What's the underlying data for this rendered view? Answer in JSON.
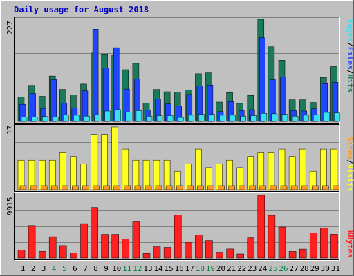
{
  "title": "Daily usage for August 2018",
  "colors": {
    "background": "#c0c0c0",
    "grid": "#808080",
    "title": "#0000c0",
    "axis_text": "#000000",
    "weekend_text": "#008040",
    "hits": "#1a7a5c",
    "files": "#1f45ff",
    "pages": "#38e0f0",
    "visits": "#ffff20",
    "sites": "#ff9a20",
    "kbytes": "#ff2020"
  },
  "chart_data": [
    {
      "type": "bar",
      "categories": [
        "1",
        "2",
        "3",
        "4",
        "5",
        "6",
        "7",
        "8",
        "9",
        "10",
        "11",
        "12",
        "13",
        "14",
        "15",
        "16",
        "17",
        "18",
        "19",
        "20",
        "21",
        "22",
        "23",
        "24",
        "25",
        "26",
        "27",
        "28",
        "29",
        "30",
        "31"
      ],
      "weekend_days": [
        "4",
        "5",
        "11",
        "12",
        "18",
        "19",
        "25",
        "26"
      ],
      "ymax_label": "227",
      "ylim": [
        0,
        227
      ],
      "legend": [
        "Pages",
        "Files",
        "Hits"
      ],
      "series": [
        {
          "name": "Hits",
          "values": [
            54,
            80,
            56,
            101,
            71,
            59,
            83,
            152,
            150,
            147,
            115,
            129,
            41,
            71,
            66,
            65,
            70,
            106,
            108,
            43,
            64,
            40,
            58,
            227,
            166,
            136,
            48,
            48,
            42,
            98,
            122
          ]
        },
        {
          "name": "Files",
          "values": [
            38,
            62,
            29,
            93,
            41,
            30,
            68,
            205,
            119,
            164,
            72,
            94,
            25,
            50,
            39,
            34,
            60,
            79,
            81,
            22,
            44,
            24,
            26,
            186,
            93,
            99,
            24,
            23,
            28,
            84,
            87
          ]
        },
        {
          "name": "Pages",
          "values": [
            10,
            10,
            11,
            10,
            15,
            14,
            12,
            15,
            23,
            26,
            21,
            24,
            12,
            13,
            13,
            9,
            14,
            16,
            16,
            14,
            14,
            12,
            13,
            18,
            17,
            16,
            12,
            14,
            15,
            20,
            19
          ]
        }
      ]
    },
    {
      "type": "bar",
      "categories": [
        "1",
        "2",
        "3",
        "4",
        "5",
        "6",
        "7",
        "8",
        "9",
        "10",
        "11",
        "12",
        "13",
        "14",
        "15",
        "16",
        "17",
        "18",
        "19",
        "20",
        "21",
        "22",
        "23",
        "24",
        "25",
        "26",
        "27",
        "28",
        "29",
        "30",
        "31"
      ],
      "ymax_label": "17",
      "ylim": [
        0,
        17
      ],
      "legend": [
        "Sites",
        "Visits"
      ],
      "series": [
        {
          "name": "Visits",
          "values": [
            8,
            8,
            8,
            8,
            10,
            9,
            7,
            15,
            15,
            17,
            11,
            8,
            8,
            8,
            8,
            5,
            7,
            11,
            6,
            7,
            8,
            6,
            9,
            10,
            10,
            11,
            9,
            11,
            5,
            11,
            11
          ]
        },
        {
          "name": "Sites",
          "values": [
            1,
            1,
            1,
            1,
            1,
            1,
            1,
            1,
            1,
            1,
            1,
            1,
            1,
            1,
            1,
            1,
            1,
            1,
            1,
            1,
            1,
            1,
            1,
            1,
            1,
            1,
            1,
            1,
            1,
            1,
            1
          ]
        }
      ]
    },
    {
      "type": "bar",
      "categories": [
        "1",
        "2",
        "3",
        "4",
        "5",
        "6",
        "7",
        "8",
        "9",
        "10",
        "11",
        "12",
        "13",
        "14",
        "15",
        "16",
        "17",
        "18",
        "19",
        "20",
        "21",
        "22",
        "23",
        "24",
        "25",
        "26",
        "27",
        "28",
        "29",
        "30",
        "31"
      ],
      "ymax_label": "9915",
      "ylim": [
        0,
        9915
      ],
      "legend": [
        "KBytes"
      ],
      "series": [
        {
          "name": "KBytes",
          "values": [
            1270,
            5140,
            1050,
            3370,
            1970,
            816,
            5440,
            7990,
            3750,
            3750,
            2990,
            5720,
            738,
            1790,
            1690,
            6800,
            2490,
            3630,
            2770,
            928,
            1430,
            652,
            3200,
            9915,
            6760,
            4900,
            1050,
            1410,
            4000,
            4740,
            3770
          ]
        }
      ]
    }
  ]
}
